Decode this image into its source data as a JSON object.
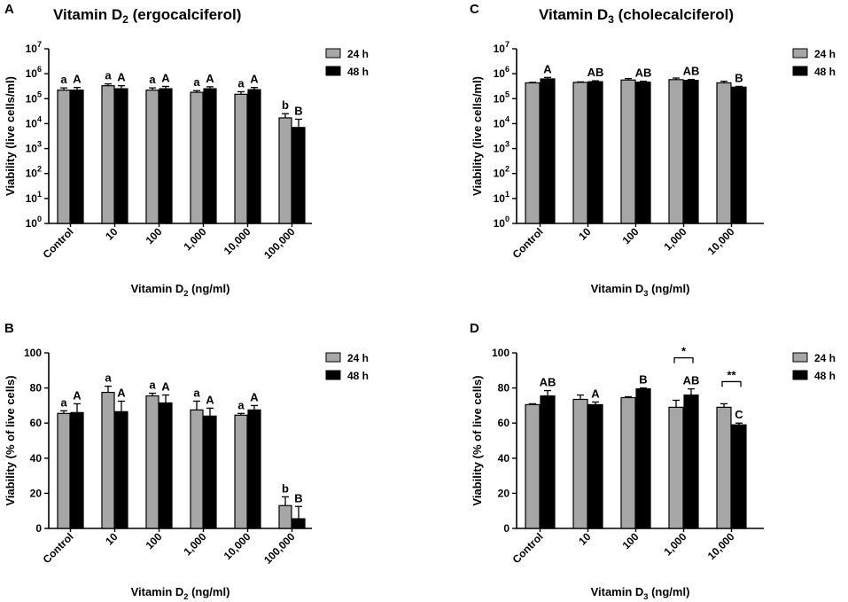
{
  "chart_data": [
    {
      "panel": "A",
      "type": "bar",
      "title": "Vitamin D",
      "title_sub": "2",
      "title_suffix": " (ergocalciferol)",
      "ylabel": "Viability (live cells/ml)",
      "xlabel": "Vitamin D",
      "xlabel_sub": "2",
      "xlabel_suffix": " (ng/ml)",
      "yscale": "log",
      "ylim": [
        1,
        10000000
      ],
      "ytick_base": "10",
      "ytick_exps": [
        "0",
        "1",
        "2",
        "3",
        "4",
        "5",
        "6",
        "7"
      ],
      "categories": [
        "Control",
        "10",
        "100",
        "1,000",
        "10,000",
        "100,000"
      ],
      "series": [
        {
          "name": "24 h",
          "color": "#a6a6a6",
          "values": [
            220000,
            330000,
            220000,
            180000,
            150000,
            17000
          ],
          "errors": [
            50000,
            60000,
            50000,
            30000,
            40000,
            8000
          ],
          "letters": [
            "a",
            "a",
            "a",
            "a",
            "a",
            "b"
          ]
        },
        {
          "name": "48 h",
          "color": "#000000",
          "values": [
            220000,
            250000,
            250000,
            250000,
            230000,
            7000
          ],
          "errors": [
            60000,
            80000,
            60000,
            50000,
            50000,
            8000
          ],
          "letters": [
            "A",
            "A",
            "A",
            "A",
            "A",
            "B"
          ]
        }
      ],
      "legend": "top-right"
    },
    {
      "panel": "C",
      "type": "bar",
      "title": "Vitamin D",
      "title_sub": "3",
      "title_suffix": " (cholecalciferol)",
      "ylabel": "Viability (live cells/ml)",
      "xlabel": "Vitamin D",
      "xlabel_sub": "3",
      "xlabel_suffix": " (ng/ml)",
      "yscale": "log",
      "ylim": [
        1,
        10000000
      ],
      "ytick_base": "10",
      "ytick_exps": [
        "0",
        "1",
        "2",
        "3",
        "4",
        "5",
        "6",
        "7"
      ],
      "categories": [
        "Control",
        "10",
        "100",
        "1,000",
        "10,000"
      ],
      "series": [
        {
          "name": "24 h",
          "color": "#a6a6a6",
          "values": [
            430000,
            450000,
            560000,
            580000,
            430000
          ],
          "errors": [
            20000,
            20000,
            80000,
            90000,
            70000
          ],
          "letters": [
            "",
            "",
            "",
            "",
            ""
          ]
        },
        {
          "name": "48 h",
          "color": "#000000",
          "values": [
            620000,
            480000,
            460000,
            540000,
            290000
          ],
          "errors": [
            90000,
            40000,
            40000,
            50000,
            20000
          ],
          "letters": [
            "A",
            "AB",
            "AB",
            "AB",
            "B"
          ]
        }
      ],
      "legend": "top-right"
    },
    {
      "panel": "B",
      "type": "bar",
      "title": "",
      "ylabel": "Viability (% of live cells)",
      "xlabel": "Vitamin D",
      "xlabel_sub": "2",
      "xlabel_suffix": " (ng/ml)",
      "yscale": "linear",
      "ylim": [
        0,
        100
      ],
      "yticks": [
        0,
        20,
        40,
        60,
        80,
        100
      ],
      "categories": [
        "Control",
        "10",
        "100",
        "1,000",
        "10,000",
        "100,000"
      ],
      "series": [
        {
          "name": "24 h",
          "color": "#a6a6a6",
          "values": [
            65.5,
            77.5,
            75.5,
            67.5,
            64.5,
            13
          ],
          "errors": [
            1.5,
            3.5,
            1.5,
            5,
            1,
            5
          ],
          "letters": [
            "a",
            "a",
            "a",
            "a",
            "a",
            "b"
          ]
        },
        {
          "name": "48 h",
          "color": "#000000",
          "values": [
            66,
            66.5,
            71.5,
            64,
            67.5,
            5.5
          ],
          "errors": [
            5,
            6,
            4.5,
            4.5,
            2.5,
            7
          ],
          "letters": [
            "A",
            "A",
            "A",
            "A",
            "A",
            "B"
          ]
        }
      ],
      "legend": "top-right"
    },
    {
      "panel": "D",
      "type": "bar",
      "title": "",
      "ylabel": "Viability (% of live cells)",
      "xlabel": "Vitamin D",
      "xlabel_sub": "3",
      "xlabel_suffix": " (ng/ml)",
      "yscale": "linear",
      "ylim": [
        0,
        100
      ],
      "yticks": [
        0,
        20,
        40,
        60,
        80,
        100
      ],
      "categories": [
        "Control",
        "10",
        "100",
        "1,000",
        "10,000"
      ],
      "series": [
        {
          "name": "24 h",
          "color": "#a6a6a6",
          "values": [
            70.5,
            73.5,
            74.5,
            69,
            69
          ],
          "errors": [
            0.5,
            2.5,
            0.5,
            4,
            2
          ],
          "letters": [
            "",
            "",
            "",
            "",
            ""
          ]
        },
        {
          "name": "48 h",
          "color": "#000000",
          "values": [
            75.5,
            70.5,
            79.5,
            76,
            59
          ],
          "errors": [
            3,
            1.5,
            0.5,
            3.5,
            1
          ],
          "letters": [
            "AB",
            "A",
            "B",
            "AB",
            "C"
          ]
        }
      ],
      "brackets": [
        {
          "category": "1,000",
          "label": "*"
        },
        {
          "category": "10,000",
          "label": "**"
        }
      ],
      "legend": "top-right"
    }
  ]
}
